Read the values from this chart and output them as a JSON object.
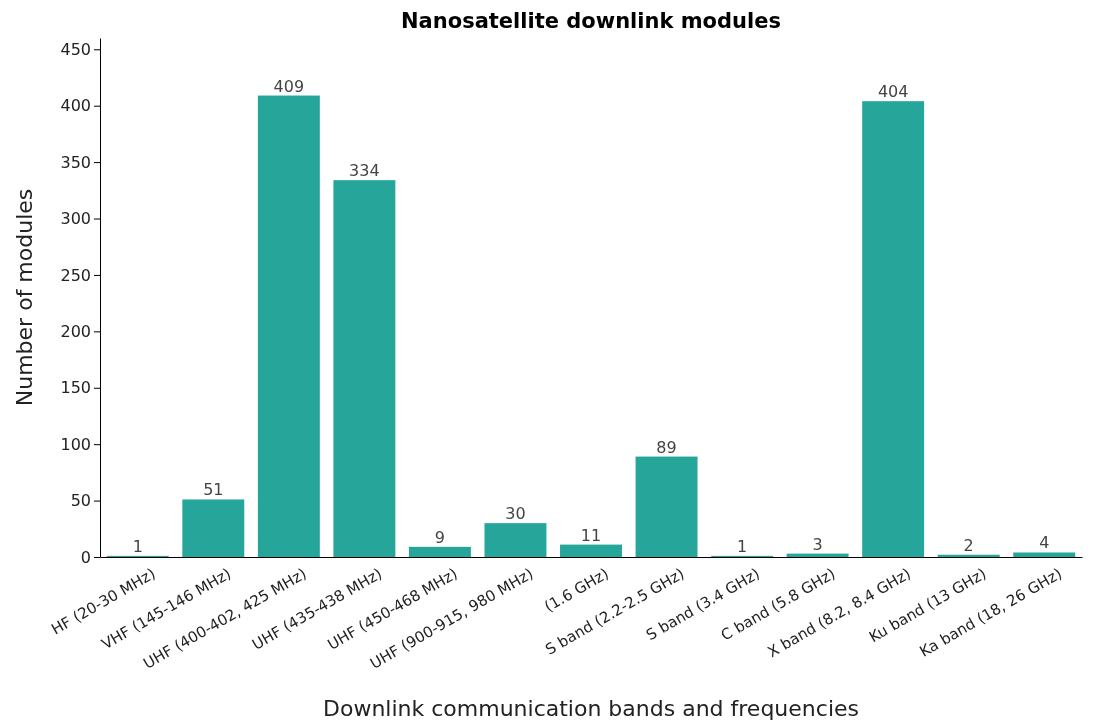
{
  "chart_data": {
    "type": "bar",
    "title": "Nanosatellite downlink modules",
    "xlabel": "Downlink communication bands and frequencies",
    "ylabel": "Number of modules",
    "categories": [
      "HF (20-30 MHz)",
      "VHF (145-146 MHz)",
      "UHF (400-402, 425 MHz)",
      "UHF (435-438 MHz)",
      "UHF (450-468 MHz)",
      "UHF (900-915, 980 MHz)",
      "(1.6 GHz)",
      "S band (2.2-2.5 GHz)",
      "S band (3.4 GHz)",
      "C band (5.8 GHz)",
      "X band (8.2, 8.4 GHz)",
      "Ku band (13 GHz)",
      "Ka band (18, 26 GHz)"
    ],
    "values": [
      1,
      51,
      409,
      334,
      9,
      30,
      11,
      89,
      1,
      3,
      404,
      2,
      4
    ],
    "color": "#26a69a",
    "ylim": [
      0,
      460
    ],
    "yticks": [
      0,
      50,
      100,
      150,
      200,
      250,
      300,
      350,
      400,
      450
    ],
    "data_labels": true,
    "grid": false
  }
}
